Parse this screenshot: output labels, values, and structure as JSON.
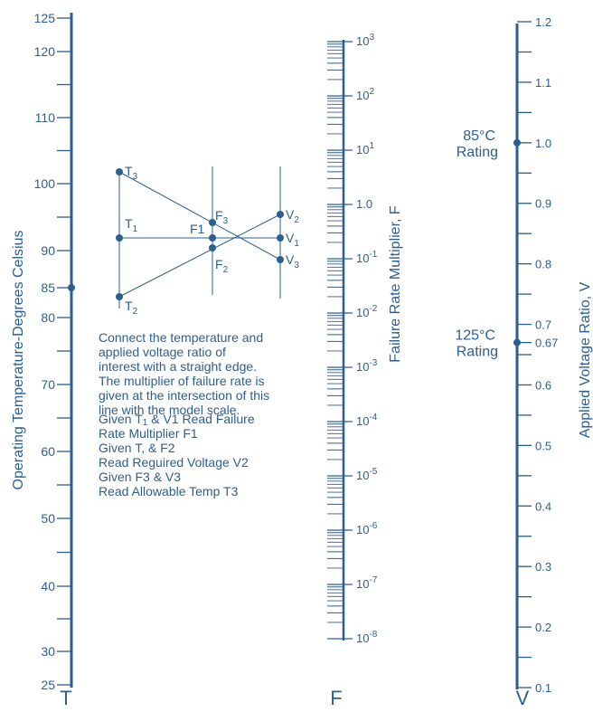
{
  "t_scale": {
    "letter": "T",
    "axis_label": "Operating Temperature-Degrees Celsius",
    "ticks": [
      {
        "value": 25,
        "label": "25"
      },
      {
        "value": 30,
        "label": "30"
      },
      {
        "value": 40,
        "label": "40"
      },
      {
        "value": 50,
        "label": "50"
      },
      {
        "value": 60,
        "label": "60"
      },
      {
        "value": 70,
        "label": "70"
      },
      {
        "value": 80,
        "label": "80"
      },
      {
        "value": 85,
        "label": "85"
      },
      {
        "value": 90,
        "label": "90"
      },
      {
        "value": 100,
        "label": "100"
      },
      {
        "value": 110,
        "label": "110"
      },
      {
        "value": 120,
        "label": "120"
      },
      {
        "value": 125,
        "label": "125"
      }
    ],
    "minor_ticks": [
      35,
      45,
      55,
      65,
      75,
      95,
      105,
      115
    ],
    "marked_value": 85
  },
  "f_scale": {
    "letter": "F",
    "axis_label": "Failure Rate Multiplier, F",
    "decades": [
      {
        "mantissa": "10",
        "exponent": "-8"
      },
      {
        "mantissa": "10",
        "exponent": "-7"
      },
      {
        "mantissa": "10",
        "exponent": "-6"
      },
      {
        "mantissa": "10",
        "exponent": "-5"
      },
      {
        "mantissa": "10",
        "exponent": "-4"
      },
      {
        "mantissa": "10",
        "exponent": "-3"
      },
      {
        "mantissa": "10",
        "exponent": "-2"
      },
      {
        "mantissa": "10",
        "exponent": "-1"
      },
      {
        "mantissa": "1.0",
        "exponent": ""
      },
      {
        "mantissa": "10",
        "exponent": "1"
      },
      {
        "mantissa": "10",
        "exponent": "2"
      },
      {
        "mantissa": "10",
        "exponent": "3"
      }
    ]
  },
  "v_scale": {
    "letter": "V",
    "axis_label": "Applied Voltage Ratio, V",
    "ticks": [
      {
        "value": 0.1,
        "label": "0.1"
      },
      {
        "value": 0.2,
        "label": "0.2"
      },
      {
        "value": 0.3,
        "label": "0.3"
      },
      {
        "value": 0.4,
        "label": "0.4"
      },
      {
        "value": 0.5,
        "label": "0.5"
      },
      {
        "value": 0.6,
        "label": "0.6"
      },
      {
        "value": 0.67,
        "label": "0.67"
      },
      {
        "value": 0.7,
        "label": "0.7"
      },
      {
        "value": 0.8,
        "label": "0.8"
      },
      {
        "value": 0.9,
        "label": "0.9"
      },
      {
        "value": 1.0,
        "label": "1.0"
      },
      {
        "value": 1.1,
        "label": "1.1"
      },
      {
        "value": 1.2,
        "label": "1.2"
      }
    ],
    "minor_ticks": [
      0.15,
      0.25,
      0.35,
      0.45,
      0.55,
      0.65,
      0.75,
      0.85,
      0.95,
      1.05,
      1.15
    ],
    "ratings": [
      {
        "id": "85",
        "line1": "85°C",
        "line2": "Rating",
        "value": 1.0
      },
      {
        "id": "125",
        "line1": "125°C",
        "line2": "Rating",
        "value": 0.67
      }
    ]
  },
  "example": {
    "t_points": [
      {
        "id": "t3",
        "letter": "T",
        "sub": "3"
      },
      {
        "id": "t1",
        "letter": "T",
        "sub": "1"
      },
      {
        "id": "t2",
        "letter": "T",
        "sub": "2"
      }
    ],
    "f_points": [
      {
        "id": "f3",
        "letter": "F",
        "sub": "3"
      },
      {
        "id": "f1",
        "letter": "F1",
        "sub": ""
      },
      {
        "id": "f2",
        "letter": "F",
        "sub": "2"
      }
    ],
    "v_points": [
      {
        "id": "v2",
        "letter": "V",
        "sub": "2"
      },
      {
        "id": "v1",
        "letter": "V",
        "sub": "1"
      },
      {
        "id": "v3",
        "letter": "V",
        "sub": "3"
      }
    ]
  },
  "instructions": [
    "Connect the temperature and",
    "applied voltage ratio of",
    "interest with a straight edge.",
    "The multiplier of failure rate is",
    "given at the intersection of this",
    "line with the model scale."
  ],
  "steps": [
    {
      "pre": "Given T",
      "sub": "1",
      "post": " & V1 Read Failure"
    },
    {
      "pre": "Rate Multiplier F1",
      "sub": "",
      "post": ""
    },
    {
      "pre": "Given T, & F2",
      "sub": "",
      "post": ""
    },
    {
      "pre": "Read Reguired Voltage V2",
      "sub": "",
      "post": ""
    },
    {
      "pre": "Given F3 & V3",
      "sub": "",
      "post": ""
    },
    {
      "pre": "Read Allowable Temp T3",
      "sub": "",
      "post": ""
    }
  ]
}
